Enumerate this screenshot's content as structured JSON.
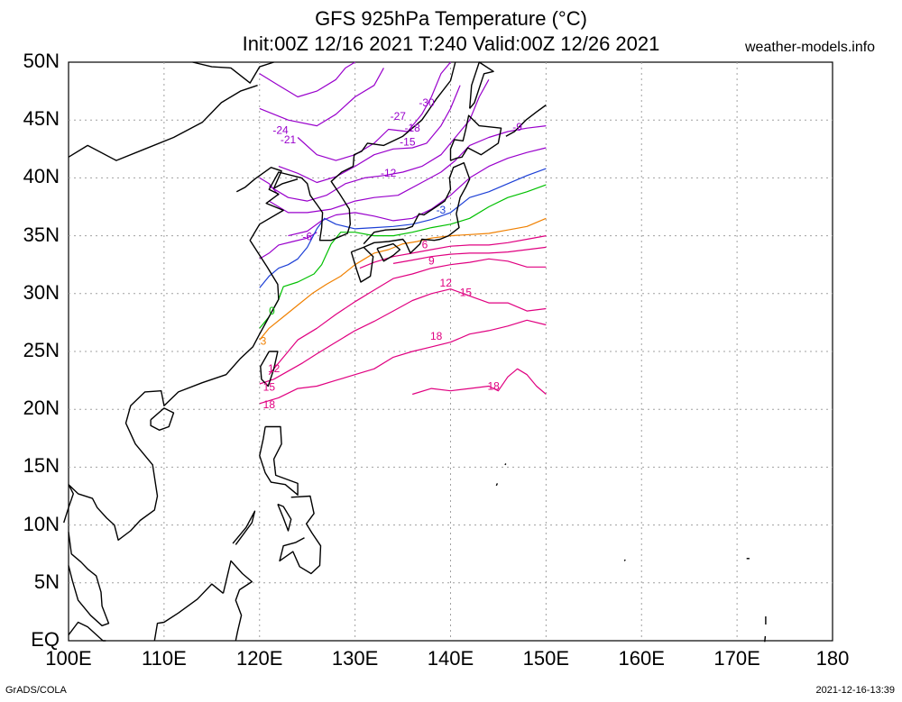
{
  "title": {
    "line1": "GFS 925hPa Temperature (°C)",
    "line2": "Init:00Z 12/16 2021 T:240 Valid:00Z 12/26 2021"
  },
  "site": "weather-models.info",
  "footer": {
    "left": "GrADS/COLA",
    "right": "2021-12-16-13:39"
  },
  "axes": {
    "lat_labels": [
      "50N",
      "45N",
      "40N",
      "35N",
      "30N",
      "25N",
      "20N",
      "15N",
      "10N",
      "5N",
      "EQ"
    ],
    "lon_labels": [
      "100E",
      "110E",
      "120E",
      "130E",
      "140E",
      "150E",
      "160E",
      "170E",
      "180"
    ]
  },
  "contour_labels": [
    "-30",
    "-27",
    "-24",
    "-21",
    "-18",
    "-15",
    "-12",
    "-9",
    "-6",
    "-3",
    "0",
    "3",
    "6",
    "9",
    "12",
    "15",
    "18"
  ],
  "colors": {
    "coast": "#000000",
    "grid": "#a0a0a0",
    "cold": "#9900cc",
    "minus3": "#1c3fd6",
    "zero": "#00c000",
    "plus3": "#f08000",
    "warm": "#e00080"
  }
}
